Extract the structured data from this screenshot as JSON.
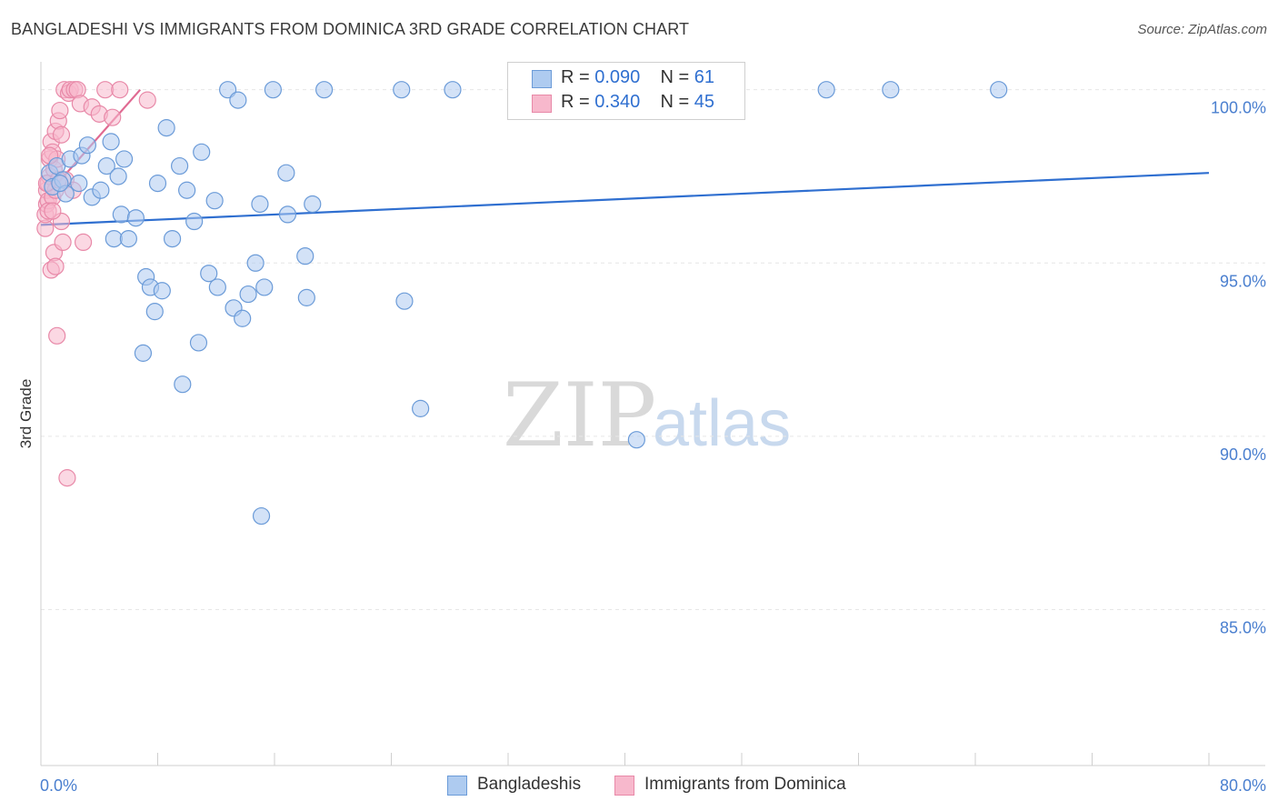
{
  "title": "BANGLADESHI VS IMMIGRANTS FROM DOMINICA 3RD GRADE CORRELATION CHART",
  "source": "Source: ZipAtlas.com",
  "legend": {
    "rows": [
      {
        "r_label": "R =",
        "r_value": "0.090",
        "n_label": "N =",
        "n_value": "61"
      },
      {
        "r_label": "R =",
        "r_value": "0.340",
        "n_label": "N =",
        "n_value": "45"
      }
    ],
    "bottom": [
      "Bangladeshis",
      "Immigrants from Dominica"
    ]
  },
  "watermark": {
    "zip": "ZIP",
    "atlas": "atlas"
  },
  "colors": {
    "blue_fill": "#aecbf0",
    "blue_stroke": "#6b9bd8",
    "blue_line": "#2f6fd0",
    "pink_fill": "#f7b8cc",
    "pink_stroke": "#e889a8",
    "pink_line": "#e06a92",
    "tick_text": "#4a7fcf",
    "grid": "#e6e6e6"
  },
  "chart_data": {
    "type": "scatter",
    "title": "BANGLADESHI VS IMMIGRANTS FROM DOMINICA 3RD GRADE CORRELATION CHART",
    "xlabel": "",
    "ylabel": "3rd Grade",
    "xlim": [
      0,
      80
    ],
    "ylim": [
      80.5,
      100.7
    ],
    "x_tick_labels": [
      "0.0%",
      "80.0%"
    ],
    "y_ticks": [
      85,
      90,
      95,
      100
    ],
    "y_tick_labels": [
      "85.0%",
      "90.0%",
      "95.0%",
      "100.0%"
    ],
    "grid": true,
    "legend_position": "top-center",
    "series": [
      {
        "name": "Bangladeshis",
        "R": 0.09,
        "N": 61,
        "trend": {
          "x": [
            0,
            80
          ],
          "y": [
            96.1,
            97.6
          ]
        },
        "points": [
          [
            0.6,
            97.6
          ],
          [
            0.8,
            97.2
          ],
          [
            1.1,
            97.8
          ],
          [
            1.5,
            97.4
          ],
          [
            1.7,
            97.0
          ],
          [
            2.0,
            98.0
          ],
          [
            2.6,
            97.3
          ],
          [
            2.8,
            98.1
          ],
          [
            3.2,
            98.4
          ],
          [
            3.5,
            96.9
          ],
          [
            4.1,
            97.1
          ],
          [
            4.5,
            97.8
          ],
          [
            4.8,
            98.5
          ],
          [
            5.3,
            97.5
          ],
          [
            5.7,
            98.0
          ],
          [
            5.0,
            95.7
          ],
          [
            6.0,
            95.7
          ],
          [
            5.5,
            96.4
          ],
          [
            6.5,
            96.3
          ],
          [
            7.0,
            92.4
          ],
          [
            7.2,
            94.6
          ],
          [
            7.5,
            94.3
          ],
          [
            7.8,
            93.6
          ],
          [
            8.0,
            97.3
          ],
          [
            8.3,
            94.2
          ],
          [
            8.6,
            98.9
          ],
          [
            9.0,
            95.7
          ],
          [
            9.5,
            97.8
          ],
          [
            9.7,
            91.5
          ],
          [
            10.0,
            97.1
          ],
          [
            10.5,
            96.2
          ],
          [
            10.8,
            92.7
          ],
          [
            11.0,
            98.2
          ],
          [
            11.5,
            94.7
          ],
          [
            11.9,
            96.8
          ],
          [
            12.1,
            94.3
          ],
          [
            12.8,
            100.0
          ],
          [
            13.2,
            93.7
          ],
          [
            13.5,
            99.7
          ],
          [
            13.8,
            93.4
          ],
          [
            14.2,
            94.1
          ],
          [
            14.7,
            95.0
          ],
          [
            15.0,
            96.7
          ],
          [
            15.3,
            94.3
          ],
          [
            15.1,
            87.7
          ],
          [
            15.9,
            100.0
          ],
          [
            16.8,
            97.6
          ],
          [
            16.9,
            96.4
          ],
          [
            18.1,
            95.2
          ],
          [
            18.2,
            94.0
          ],
          [
            18.6,
            96.7
          ],
          [
            19.4,
            100.0
          ],
          [
            24.7,
            100.0
          ],
          [
            24.9,
            93.9
          ],
          [
            26.0,
            90.8
          ],
          [
            28.2,
            100.0
          ],
          [
            40.8,
            89.9
          ],
          [
            53.8,
            100.0
          ],
          [
            58.2,
            100.0
          ],
          [
            65.6,
            100.0
          ],
          [
            1.3,
            97.3
          ]
        ]
      },
      {
        "name": "Immigrants from Dominica",
        "R": 0.34,
        "N": 45,
        "trend": {
          "x": [
            0.3,
            6.8
          ],
          "y": [
            96.9,
            100.0
          ]
        },
        "points": [
          [
            0.3,
            96.0
          ],
          [
            0.3,
            96.4
          ],
          [
            0.4,
            96.7
          ],
          [
            0.4,
            97.1
          ],
          [
            0.5,
            96.8
          ],
          [
            0.5,
            97.3
          ],
          [
            0.6,
            97.5
          ],
          [
            0.6,
            98.0
          ],
          [
            0.7,
            98.5
          ],
          [
            0.7,
            94.8
          ],
          [
            0.8,
            98.2
          ],
          [
            0.8,
            96.9
          ],
          [
            0.9,
            97.7
          ],
          [
            0.9,
            95.3
          ],
          [
            1.0,
            98.8
          ],
          [
            1.0,
            97.1
          ],
          [
            1.0,
            94.9
          ],
          [
            1.1,
            98.0
          ],
          [
            1.1,
            92.9
          ],
          [
            1.2,
            99.1
          ],
          [
            1.3,
            99.4
          ],
          [
            1.4,
            98.7
          ],
          [
            1.4,
            96.2
          ],
          [
            1.5,
            95.6
          ],
          [
            1.6,
            100.0
          ],
          [
            1.7,
            97.4
          ],
          [
            1.8,
            88.8
          ],
          [
            1.9,
            99.9
          ],
          [
            2.0,
            100.0
          ],
          [
            2.2,
            97.1
          ],
          [
            2.3,
            100.0
          ],
          [
            2.5,
            100.0
          ],
          [
            2.7,
            99.6
          ],
          [
            2.9,
            95.6
          ],
          [
            3.5,
            99.5
          ],
          [
            4.0,
            99.3
          ],
          [
            4.4,
            100.0
          ],
          [
            4.9,
            99.2
          ],
          [
            5.4,
            100.0
          ],
          [
            7.3,
            99.7
          ],
          [
            0.4,
            97.3
          ],
          [
            0.5,
            96.5
          ],
          [
            0.6,
            98.1
          ],
          [
            0.8,
            96.5
          ],
          [
            1.2,
            97.4
          ]
        ]
      }
    ]
  }
}
